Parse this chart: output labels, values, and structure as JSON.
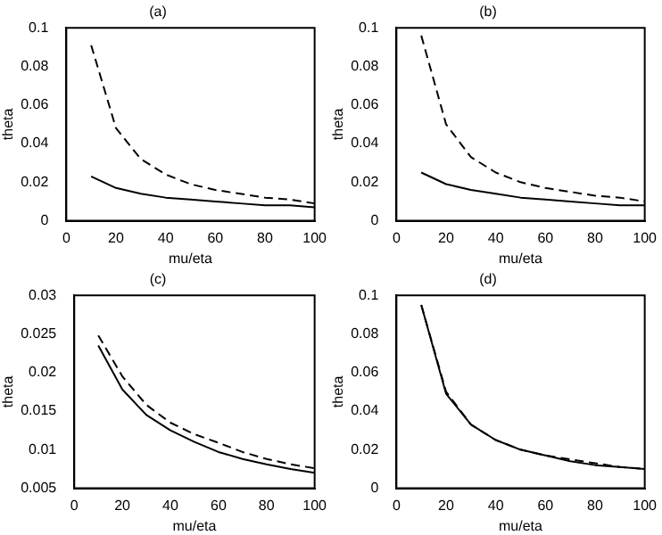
{
  "chart_data": [
    {
      "type": "line",
      "title": "(a)",
      "xlabel": "mu/eta",
      "ylabel": "theta",
      "x": [
        10,
        20,
        30,
        40,
        50,
        60,
        70,
        80,
        90,
        100
      ],
      "xlim": [
        0,
        100
      ],
      "xticks": [
        0,
        20,
        40,
        60,
        80,
        100
      ],
      "ylim": [
        0,
        0.1
      ],
      "yticks": [
        0,
        0.02,
        0.04,
        0.06,
        0.08,
        0.1
      ],
      "grid": false,
      "legend": false,
      "marker": "none",
      "series": [
        {
          "color": "#000000",
          "line_style": "solid",
          "values": [
            0.023,
            0.017,
            0.014,
            0.012,
            0.011,
            0.01,
            0.009,
            0.008,
            0.008,
            0.007
          ]
        },
        {
          "color": "#000000",
          "line_style": "dashed",
          "values": [
            0.091,
            0.048,
            0.032,
            0.024,
            0.019,
            0.016,
            0.014,
            0.012,
            0.011,
            0.009
          ]
        }
      ]
    },
    {
      "type": "line",
      "title": "(b)",
      "xlabel": "mu/eta",
      "ylabel": "theta",
      "x": [
        10,
        20,
        30,
        40,
        50,
        60,
        70,
        80,
        90,
        100
      ],
      "xlim": [
        0,
        100
      ],
      "xticks": [
        0,
        20,
        40,
        60,
        80,
        100
      ],
      "ylim": [
        0,
        0.1
      ],
      "yticks": [
        0,
        0.02,
        0.04,
        0.06,
        0.08,
        0.1
      ],
      "grid": false,
      "legend": false,
      "marker": "none",
      "series": [
        {
          "color": "#000000",
          "line_style": "solid",
          "values": [
            0.025,
            0.019,
            0.016,
            0.014,
            0.012,
            0.011,
            0.01,
            0.009,
            0.008,
            0.008
          ]
        },
        {
          "color": "#000000",
          "line_style": "dashed",
          "values": [
            0.096,
            0.05,
            0.033,
            0.025,
            0.02,
            0.017,
            0.015,
            0.013,
            0.012,
            0.01
          ]
        }
      ]
    },
    {
      "type": "line",
      "title": "(c)",
      "xlabel": "mu/eta",
      "ylabel": "theta",
      "x": [
        10,
        20,
        30,
        40,
        50,
        60,
        70,
        80,
        90,
        100
      ],
      "xlim": [
        0,
        100
      ],
      "xticks": [
        0,
        20,
        40,
        60,
        80,
        100
      ],
      "ylim": [
        0.005,
        0.03
      ],
      "yticks": [
        0.005,
        0.01,
        0.015,
        0.02,
        0.025,
        0.03
      ],
      "grid": false,
      "legend": false,
      "marker": "none",
      "series": [
        {
          "color": "#000000",
          "line_style": "solid",
          "values": [
            0.0235,
            0.0178,
            0.0145,
            0.0125,
            0.011,
            0.0097,
            0.0088,
            0.0081,
            0.0075,
            0.007
          ]
        },
        {
          "color": "#000000",
          "line_style": "dashed",
          "values": [
            0.0248,
            0.0195,
            0.0158,
            0.0135,
            0.012,
            0.0109,
            0.0097,
            0.0088,
            0.0081,
            0.0076
          ]
        }
      ]
    },
    {
      "type": "line",
      "title": "(d)",
      "xlabel": "mu/eta",
      "ylabel": "theta",
      "x": [
        10,
        20,
        30,
        40,
        50,
        60,
        70,
        80,
        90,
        100
      ],
      "xlim": [
        0,
        100
      ],
      "xticks": [
        0,
        20,
        40,
        60,
        80,
        100
      ],
      "ylim": [
        0,
        0.1
      ],
      "yticks": [
        0,
        0.02,
        0.04,
        0.06,
        0.08,
        0.1
      ],
      "grid": false,
      "legend": false,
      "marker": "none",
      "series": [
        {
          "color": "#000000",
          "line_style": "solid",
          "values": [
            0.095,
            0.049,
            0.033,
            0.025,
            0.02,
            0.017,
            0.014,
            0.012,
            0.011,
            0.01
          ]
        },
        {
          "color": "#000000",
          "line_style": "dashed",
          "values": [
            0.095,
            0.05,
            0.033,
            0.025,
            0.02,
            0.017,
            0.015,
            0.013,
            0.011,
            0.01
          ]
        }
      ]
    }
  ]
}
